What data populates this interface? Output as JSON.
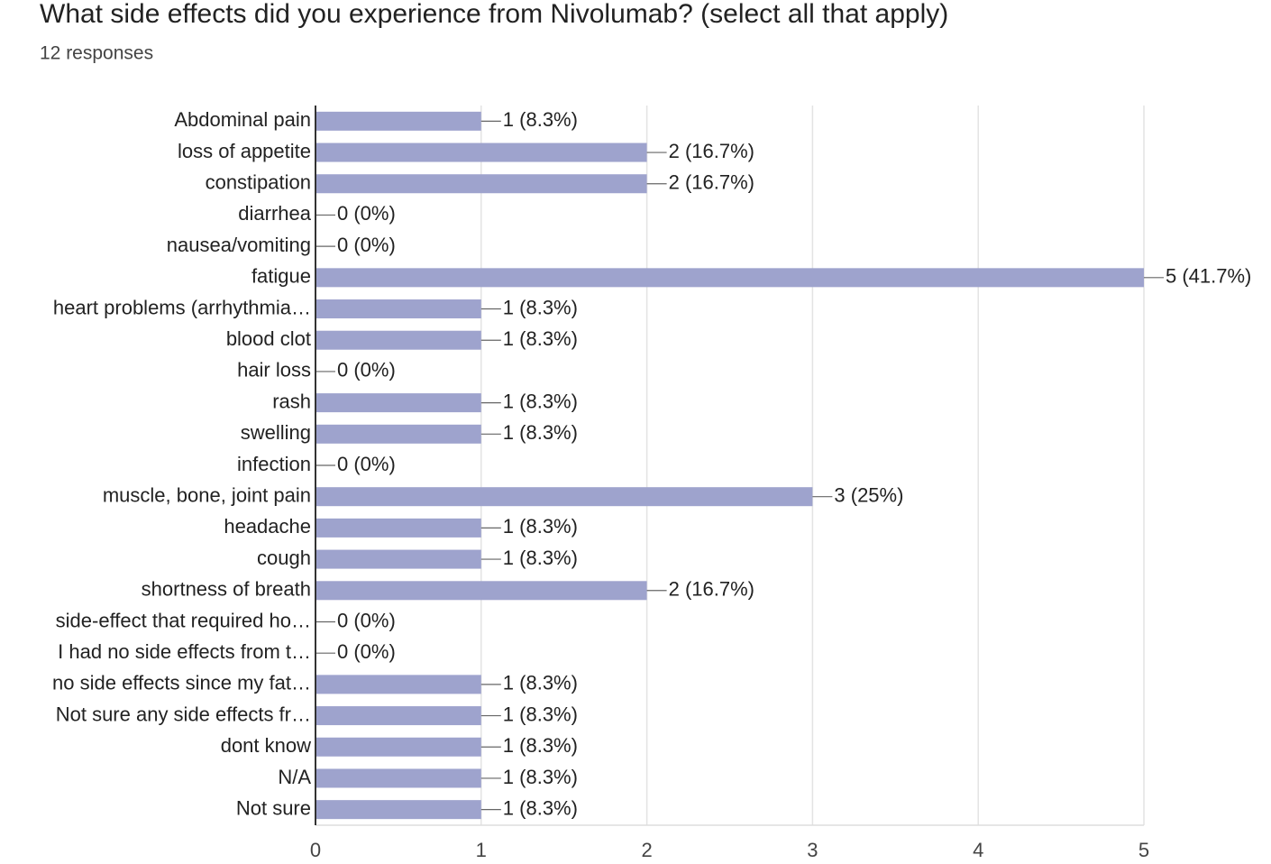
{
  "title": "What side effects did you experience from Nivolumab? (select all that apply)",
  "subtitle": "12 responses",
  "chart_data": {
    "type": "hbar",
    "categories": [
      "Abdominal pain",
      "loss of appetite",
      "constipation",
      "diarrhea",
      "nausea/vomiting",
      "fatigue",
      "heart problems (arrhythmia…",
      "blood clot",
      "hair loss",
      "rash",
      "swelling",
      "infection",
      "muscle, bone, joint pain",
      "headache",
      "cough",
      "shortness of breath",
      "side-effect that required ho…",
      "I had no side effects from t…",
      "no side effects since my fat…",
      "Not sure any side effects fr…",
      "dont know",
      "N/A",
      "Not sure"
    ],
    "values": [
      1,
      2,
      2,
      0,
      0,
      5,
      1,
      1,
      0,
      1,
      1,
      0,
      3,
      1,
      1,
      2,
      0,
      0,
      1,
      1,
      1,
      1,
      1
    ],
    "value_labels": [
      "1 (8.3%)",
      "2 (16.7%)",
      "2 (16.7%)",
      "0 (0%)",
      "0 (0%)",
      "5 (41.7%)",
      "1 (8.3%)",
      "1 (8.3%)",
      "0 (0%)",
      "1 (8.3%)",
      "1 (8.3%)",
      "0 (0%)",
      "3 (25%)",
      "1 (8.3%)",
      "1 (8.3%)",
      "2 (16.7%)",
      "0 (0%)",
      "0 (0%)",
      "1 (8.3%)",
      "1 (8.3%)",
      "1 (8.3%)",
      "1 (8.3%)",
      "1 (8.3%)"
    ],
    "color": "#9ea3cd",
    "xlim": [
      0,
      5
    ],
    "xticks": [
      0,
      1,
      2,
      3,
      4,
      5
    ],
    "grid": true
  }
}
